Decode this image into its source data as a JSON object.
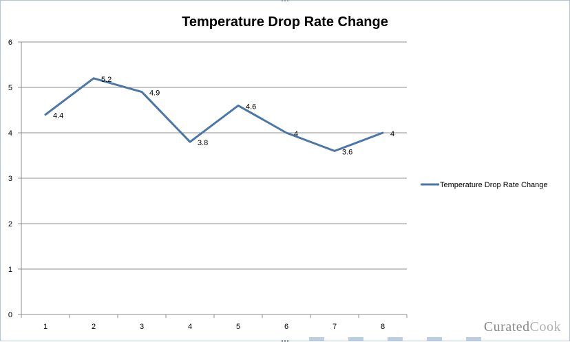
{
  "chart_data": {
    "type": "line",
    "title": "Temperature Drop Rate Change",
    "xlabel": "",
    "ylabel": "",
    "categories": [
      "1",
      "2",
      "3",
      "4",
      "5",
      "6",
      "7",
      "8"
    ],
    "series": [
      {
        "name": "Temperature Drop Rate Change",
        "values": [
          4.4,
          5.2,
          4.9,
          3.8,
          4.6,
          4,
          3.6,
          4
        ],
        "data_labels": [
          "4.4",
          "5.2",
          "4.9",
          "3.8",
          "4.6",
          "4",
          "3.6",
          "4"
        ],
        "color": "#4a76a8"
      }
    ],
    "ylim": [
      0,
      6
    ],
    "yticks": [
      "0",
      "1",
      "2",
      "3",
      "4",
      "5",
      "6"
    ],
    "grid": "horizontal",
    "legend_position": "right"
  },
  "watermark": {
    "text_a": "Curated",
    "text_b": "Cook"
  },
  "colors": {
    "gridline": "#8c8c8c",
    "axis": "#8c8c8c",
    "frame_border": "#b8c4d4"
  }
}
